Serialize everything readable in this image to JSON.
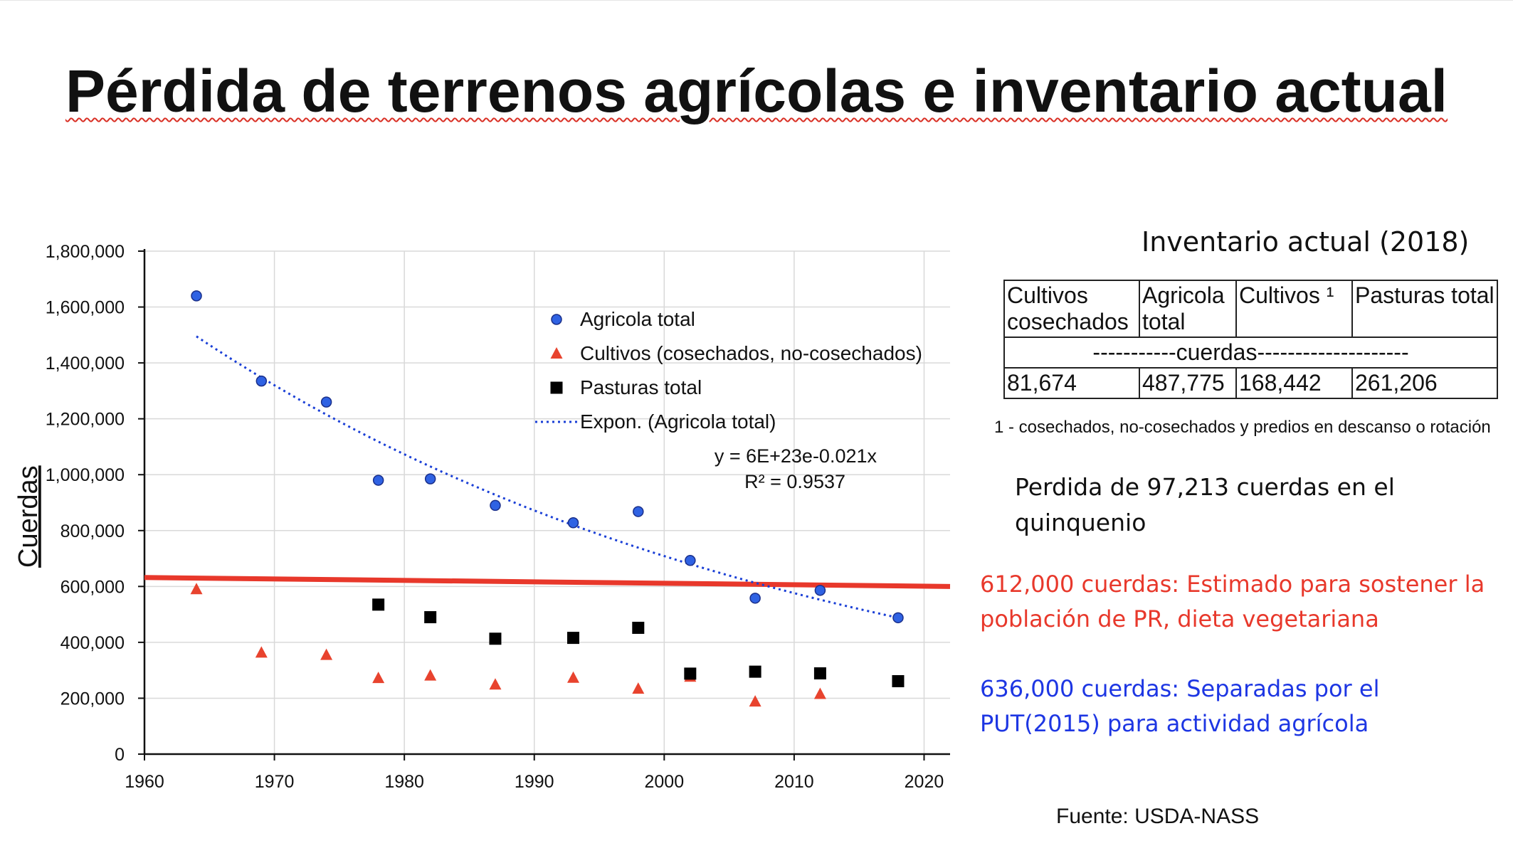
{
  "slide": {
    "title": "Pérdida de terrenos agrícolas e inventario actual",
    "inventory": {
      "heading": "Inventario actual (2018)",
      "headers": [
        "Cultivos cosechados",
        "Agricola total",
        "Cultivos ¹",
        "Pasturas total"
      ],
      "units_row": "-----------cuerdas--------------------",
      "values": [
        "81,674",
        "487,775",
        "168,442",
        "261,206"
      ],
      "footnote": "1 - cosechados, no-cosechados y predios en descanso o rotación"
    },
    "loss_text": "Perdida de 97,213 cuerdas en el quinquenio",
    "estimate_text": "612,000 cuerdas: Estimado para sostener la población de PR, dieta vegetariana",
    "separated_text": "636,000 cuerdas: Separadas por el PUT(2015) para actividad agrícola",
    "source": "Fuente: USDA-NASS"
  },
  "colors": {
    "agricola": "#2f62e3",
    "cultivos": "#e8432e",
    "pasturas": "#000000",
    "trend": "#1a3fd6",
    "reference_line": "#e8382b",
    "estimate_text": "#e8382b",
    "separated_text": "#1d36e3"
  },
  "chart_data": {
    "type": "scatter",
    "ylabel": "Cuerdas",
    "xlim": [
      1960,
      2022
    ],
    "ylim": [
      0,
      1800000
    ],
    "xticks": [
      1960,
      1970,
      1980,
      1990,
      2000,
      2010,
      2020
    ],
    "yticks": [
      0,
      200000,
      400000,
      600000,
      800000,
      1000000,
      1200000,
      1400000,
      1600000,
      1800000
    ],
    "ytick_labels": [
      "0",
      "200,000",
      "400,000",
      "600,000",
      "800,000",
      "1,000,000",
      "1,200,000",
      "1,400,000",
      "1,600,000",
      "1,800,000"
    ],
    "grid": true,
    "legend_position": "top-right",
    "series": [
      {
        "name": "Agricola total",
        "marker": "circle",
        "color": "#2f62e3",
        "x": [
          1964,
          1969,
          1974,
          1978,
          1982,
          1987,
          1993,
          1998,
          2002,
          2007,
          2012,
          2018
        ],
        "y": [
          1640000,
          1335000,
          1260000,
          980000,
          985000,
          890000,
          828000,
          868000,
          693000,
          558000,
          586000,
          488000
        ]
      },
      {
        "name": "Cultivos (cosechados, no-cosechados)",
        "marker": "triangle",
        "color": "#e8432e",
        "x": [
          1964,
          1969,
          1974,
          1978,
          1982,
          1987,
          1993,
          1998,
          2002,
          2007,
          2012
        ],
        "y": [
          590000,
          363000,
          355000,
          272000,
          281000,
          249000,
          273000,
          234000,
          277000,
          188000,
          215000
        ]
      },
      {
        "name": "Pasturas total",
        "marker": "square",
        "color": "#000000",
        "x": [
          1978,
          1982,
          1987,
          1993,
          1998,
          2002,
          2007,
          2012,
          2018
        ],
        "y": [
          535000,
          490000,
          413000,
          416000,
          452000,
          288000,
          295000,
          289000,
          261000
        ]
      }
    ],
    "trendline": {
      "name": "Expon. (Agricola total)",
      "equation": "y = 6E+23e-0.021x",
      "r2_label": "R² = 0.9537",
      "x_range": [
        1964,
        2018
      ],
      "y_range": [
        1495000,
        488000
      ],
      "color": "#1a3fd6"
    },
    "reference_line": {
      "x_range": [
        1960,
        2022
      ],
      "y_range": [
        632000,
        600000
      ],
      "color": "#e8382b"
    }
  }
}
